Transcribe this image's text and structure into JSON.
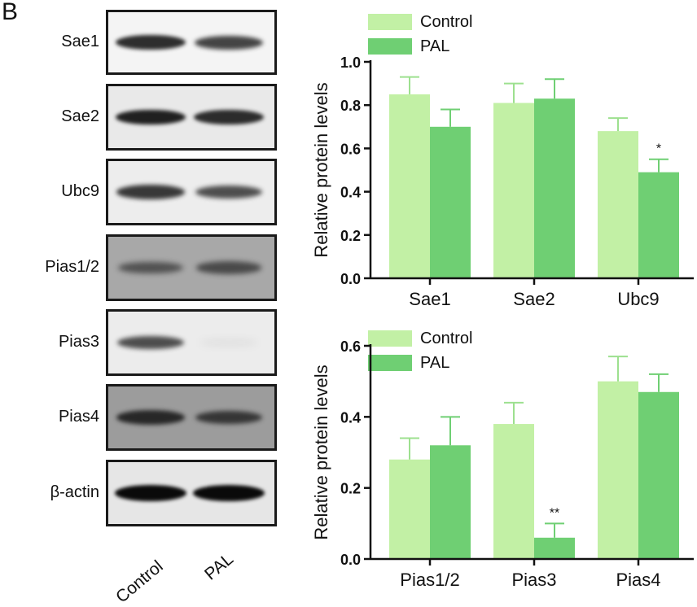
{
  "panel_label": "B",
  "blots": [
    {
      "label": "Sae1",
      "bg": "#f4f4f4",
      "bands": [
        0.85,
        0.75
      ]
    },
    {
      "label": "Sae2",
      "bg": "#e9e9e9",
      "bands": [
        0.9,
        0.85
      ]
    },
    {
      "label": "Ubc9",
      "bg": "#ededed",
      "bands": [
        0.8,
        0.7
      ]
    },
    {
      "label": "Pias1/2",
      "bg": "#a8a8a8",
      "bands": [
        0.55,
        0.6
      ]
    },
    {
      "label": "Pias3",
      "bg": "#ececec",
      "bands": [
        0.7,
        0.06
      ]
    },
    {
      "label": "Pias4",
      "bg": "#9c9c9c",
      "bands": [
        0.8,
        0.7
      ]
    },
    {
      "label": "β-actin",
      "bg": "#e6e6e6",
      "bands": [
        1.0,
        1.0
      ]
    }
  ],
  "lanes": [
    "Control",
    "PAL"
  ],
  "colors": {
    "control": "#c2f0a5",
    "pal": "#6fcf73",
    "error": "#9de08f",
    "axis": "#111111"
  },
  "chart_data": [
    {
      "type": "bar",
      "ylabel": "Relative protein levels",
      "ylim": [
        0,
        1.0
      ],
      "yticks": [
        "0.0",
        "0.2",
        "0.4",
        "0.6",
        "0.8",
        "1.0"
      ],
      "ytick_values": [
        0,
        0.2,
        0.4,
        0.6,
        0.8,
        1.0
      ],
      "categories": [
        "Sae1",
        "Sae2",
        "Ubc9"
      ],
      "legend_position": "top-left",
      "series": [
        {
          "name": "Control",
          "values": [
            0.85,
            0.81,
            0.68
          ],
          "errors": [
            0.08,
            0.09,
            0.06
          ]
        },
        {
          "name": "PAL",
          "values": [
            0.7,
            0.83,
            0.49
          ],
          "errors": [
            0.08,
            0.09,
            0.06
          ]
        }
      ],
      "annotations": [
        {
          "category": "Ubc9",
          "series": "PAL",
          "text": "*"
        }
      ]
    },
    {
      "type": "bar",
      "ylabel": "Relative protein levels",
      "ylim": [
        0,
        0.6
      ],
      "yticks": [
        "0.0",
        "0.2",
        "0.4",
        "0.6"
      ],
      "ytick_values": [
        0,
        0.2,
        0.4,
        0.6
      ],
      "categories": [
        "Pias1/2",
        "Pias3",
        "Pias4"
      ],
      "legend_position": "top-left",
      "series": [
        {
          "name": "Control",
          "values": [
            0.28,
            0.38,
            0.5
          ],
          "errors": [
            0.06,
            0.06,
            0.07
          ]
        },
        {
          "name": "PAL",
          "values": [
            0.32,
            0.06,
            0.47
          ],
          "errors": [
            0.08,
            0.04,
            0.05
          ]
        }
      ],
      "annotations": [
        {
          "category": "Pias3",
          "series": "PAL",
          "text": "**"
        }
      ]
    }
  ]
}
